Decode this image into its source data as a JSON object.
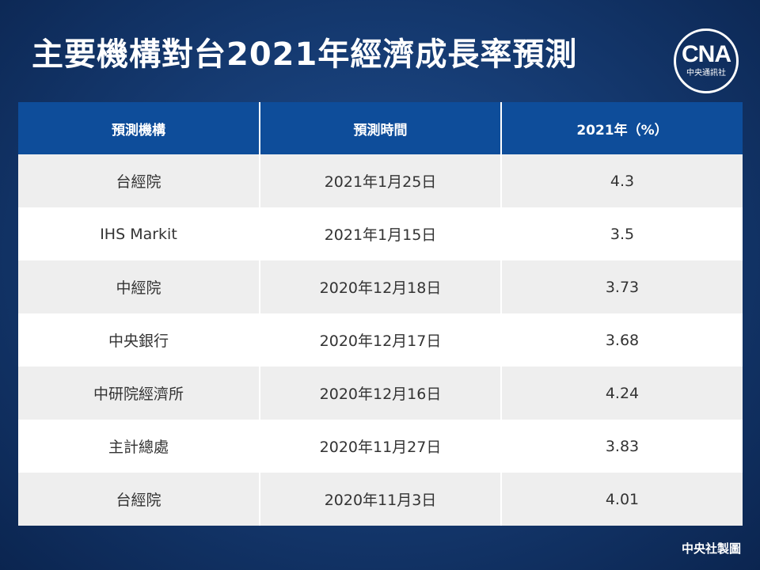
{
  "title": "主要機構對台2021年經濟成長率預測",
  "logo": {
    "mark": "CNA",
    "sub": "中央通訊社"
  },
  "table": {
    "headers": [
      "預測機構",
      "預測時間",
      "2021年（%）"
    ],
    "rows": [
      [
        "台經院",
        "2021年1月25日",
        "4.3"
      ],
      [
        "IHS Markit",
        "2021年1月15日",
        "3.5"
      ],
      [
        "中經院",
        "2020年12月18日",
        "3.73"
      ],
      [
        "中央銀行",
        "2020年12月17日",
        "3.68"
      ],
      [
        "中研院經濟所",
        "2020年12月16日",
        "4.24"
      ],
      [
        "主計總處",
        "2020年11月27日",
        "3.83"
      ],
      [
        "台經院",
        "2020年11月3日",
        "4.01"
      ]
    ]
  },
  "credit": "中央社製圖",
  "colors": {
    "header": "#0e4d9a",
    "row_alt": "#eeeeee",
    "background": "#163c74"
  }
}
